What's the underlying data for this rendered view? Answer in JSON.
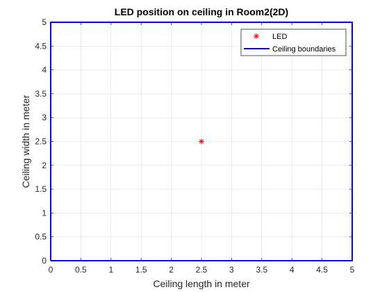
{
  "chart_data": {
    "type": "scatter",
    "title": "LED position on ceiling in Room2(2D)",
    "xlabel": "Ceiling length in meter",
    "ylabel": "Ceiling width in meter",
    "xlim": [
      0,
      5
    ],
    "ylim": [
      0,
      5
    ],
    "xticks": [
      "0",
      "0.5",
      "1",
      "1.5",
      "2",
      "2.5",
      "3",
      "3.5",
      "4",
      "4.5",
      "5"
    ],
    "yticks": [
      "0",
      "0.5",
      "1",
      "1.5",
      "2",
      "2.5",
      "3",
      "3.5",
      "4",
      "4.5",
      "5"
    ],
    "grid": true,
    "legend_position": "top-right",
    "series": [
      {
        "name": "LED",
        "kind": "marker",
        "marker": "asterisk",
        "color": "#ff0000",
        "x": [
          2.5
        ],
        "y": [
          2.5
        ]
      },
      {
        "name": "Ceiling boundaries",
        "kind": "line",
        "color": "#0000ff",
        "x": [
          0,
          5,
          5,
          0,
          0
        ],
        "y": [
          0,
          0,
          5,
          5,
          0
        ]
      }
    ]
  }
}
